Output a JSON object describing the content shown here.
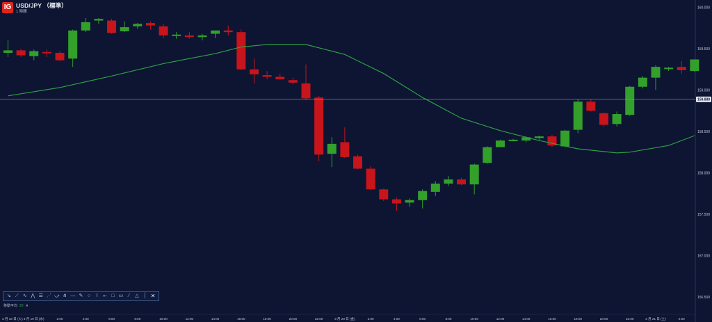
{
  "header": {
    "logo_text": "IG",
    "instrument": "USD/JPY （標準）",
    "timeframe": "1 時間"
  },
  "indicator": {
    "label": "移動平均",
    "value": "20",
    "close": "✕"
  },
  "toolbar": {
    "tools": [
      {
        "icon": "trend-arrow-icon",
        "glyph": "↘"
      },
      {
        "icon": "cross-line-icon",
        "glyph": "⟋"
      },
      {
        "icon": "wave-icon",
        "glyph": "∿"
      },
      {
        "icon": "wave-up-icon",
        "glyph": "⋀"
      },
      {
        "icon": "channel-icon",
        "glyph": "☰"
      },
      {
        "icon": "fib-fan-icon",
        "glyph": "⋰"
      },
      {
        "icon": "fib-arc-icon",
        "glyph": "⤻"
      },
      {
        "icon": "pitchfork-icon",
        "glyph": "⋔"
      },
      {
        "icon": "horizontal-line-icon",
        "glyph": "—"
      },
      {
        "icon": "pencil-icon",
        "glyph": "✎"
      },
      {
        "icon": "circle-icon",
        "glyph": "○"
      },
      {
        "icon": "brush-icon",
        "glyph": "⌇"
      },
      {
        "icon": "ray-icon",
        "glyph": "⟜"
      },
      {
        "icon": "rectangle-icon",
        "glyph": "□"
      },
      {
        "icon": "text-box-icon",
        "glyph": "▭"
      },
      {
        "icon": "line-icon",
        "glyph": "⁄"
      },
      {
        "icon": "triangle-icon",
        "glyph": "△"
      },
      {
        "icon": "vertical-line-icon",
        "glyph": "│"
      }
    ],
    "close_glyph": "✕"
  },
  "colors": {
    "background": "#0d1532",
    "bull": "#33a02c",
    "bear": "#c8141b",
    "ma": "#2f9e45",
    "crosshair": "#8d96a8",
    "axis_text": "#c2c9d9",
    "price_tag_bg": "#e6e8ee"
  },
  "chart_data": {
    "type": "candlestick",
    "instrument": "USD/JPY",
    "ylim": [
      156.45,
      160.1
    ],
    "y_ticks": [
      "160.000",
      "159.500",
      "159.000",
      "158.500",
      "158.000",
      "157.500",
      "157.000",
      "156.500"
    ],
    "current_price": "158.888",
    "x_ticks": [
      {
        "i": 0,
        "label": "3 月 18 日 (火) 3 月 19 日 (水)"
      },
      {
        "i": 4,
        "label": "2:00"
      },
      {
        "i": 6,
        "label": "4:00"
      },
      {
        "i": 8,
        "label": "6:00"
      },
      {
        "i": 10,
        "label": "8:00"
      },
      {
        "i": 12,
        "label": "10:00"
      },
      {
        "i": 14,
        "label": "12:00"
      },
      {
        "i": 16,
        "label": "14:00"
      },
      {
        "i": 18,
        "label": "16:00"
      },
      {
        "i": 20,
        "label": "18:00"
      },
      {
        "i": 22,
        "label": "20:00"
      },
      {
        "i": 24,
        "label": "22:00"
      },
      {
        "i": 26,
        "label": "3 月 20 日 (金)"
      },
      {
        "i": 28,
        "label": "2:00"
      },
      {
        "i": 30,
        "label": "4:00"
      },
      {
        "i": 32,
        "label": "6:00"
      },
      {
        "i": 34,
        "label": "8:00"
      },
      {
        "i": 36,
        "label": "10:00"
      },
      {
        "i": 38,
        "label": "12:00"
      },
      {
        "i": 40,
        "label": "14:00"
      },
      {
        "i": 42,
        "label": "16:00"
      },
      {
        "i": 44,
        "label": "18:00"
      },
      {
        "i": 46,
        "label": "20:00"
      },
      {
        "i": 48,
        "label": "22:00"
      },
      {
        "i": 50,
        "label": "3 月 21 日 (土)"
      },
      {
        "i": 52,
        "label": "2:00"
      }
    ],
    "candles": [
      {
        "o": 159.45,
        "h": 159.6,
        "l": 159.4,
        "c": 159.48
      },
      {
        "o": 159.48,
        "h": 159.5,
        "l": 159.4,
        "c": 159.42
      },
      {
        "o": 159.41,
        "h": 159.49,
        "l": 159.36,
        "c": 159.47
      },
      {
        "o": 159.46,
        "h": 159.49,
        "l": 159.4,
        "c": 159.45
      },
      {
        "o": 159.45,
        "h": 159.47,
        "l": 159.35,
        "c": 159.36
      },
      {
        "o": 159.38,
        "h": 159.73,
        "l": 159.28,
        "c": 159.72
      },
      {
        "o": 159.72,
        "h": 159.87,
        "l": 159.7,
        "c": 159.82
      },
      {
        "o": 159.84,
        "h": 159.87,
        "l": 159.8,
        "c": 159.86
      },
      {
        "o": 159.84,
        "h": 159.86,
        "l": 159.68,
        "c": 159.69
      },
      {
        "o": 159.71,
        "h": 159.83,
        "l": 159.7,
        "c": 159.76
      },
      {
        "o": 159.77,
        "h": 159.81,
        "l": 159.74,
        "c": 159.8
      },
      {
        "o": 159.81,
        "h": 159.83,
        "l": 159.73,
        "c": 159.78
      },
      {
        "o": 159.77,
        "h": 159.8,
        "l": 159.63,
        "c": 159.66
      },
      {
        "o": 159.67,
        "h": 159.7,
        "l": 159.62,
        "c": 159.67
      },
      {
        "o": 159.66,
        "h": 159.7,
        "l": 159.62,
        "c": 159.64
      },
      {
        "o": 159.64,
        "h": 159.68,
        "l": 159.6,
        "c": 159.66
      },
      {
        "o": 159.68,
        "h": 159.72,
        "l": 159.63,
        "c": 159.72
      },
      {
        "o": 159.72,
        "h": 159.78,
        "l": 159.66,
        "c": 159.7
      },
      {
        "o": 159.7,
        "h": 159.73,
        "l": 159.24,
        "c": 159.25
      },
      {
        "o": 159.25,
        "h": 159.38,
        "l": 159.08,
        "c": 159.19
      },
      {
        "o": 159.18,
        "h": 159.23,
        "l": 159.13,
        "c": 159.16
      },
      {
        "o": 159.16,
        "h": 159.2,
        "l": 159.13,
        "c": 159.13
      },
      {
        "o": 159.12,
        "h": 159.15,
        "l": 159.07,
        "c": 159.09
      },
      {
        "o": 159.08,
        "h": 159.31,
        "l": 158.88,
        "c": 158.9
      },
      {
        "o": 158.91,
        "h": 158.93,
        "l": 158.14,
        "c": 158.22
      },
      {
        "o": 158.23,
        "h": 158.43,
        "l": 158.07,
        "c": 158.35
      },
      {
        "o": 158.37,
        "h": 158.55,
        "l": 158.18,
        "c": 158.19
      },
      {
        "o": 158.2,
        "h": 158.22,
        "l": 158.04,
        "c": 158.05
      },
      {
        "o": 158.05,
        "h": 158.08,
        "l": 157.79,
        "c": 157.8
      },
      {
        "o": 157.8,
        "h": 157.81,
        "l": 157.66,
        "c": 157.68
      },
      {
        "o": 157.68,
        "h": 157.7,
        "l": 157.54,
        "c": 157.63
      },
      {
        "o": 157.64,
        "h": 157.69,
        "l": 157.59,
        "c": 157.67
      },
      {
        "o": 157.67,
        "h": 157.8,
        "l": 157.57,
        "c": 157.78
      },
      {
        "o": 157.77,
        "h": 157.9,
        "l": 157.72,
        "c": 157.87
      },
      {
        "o": 157.87,
        "h": 157.96,
        "l": 157.84,
        "c": 157.92
      },
      {
        "o": 157.92,
        "h": 157.94,
        "l": 157.85,
        "c": 157.86
      },
      {
        "o": 157.86,
        "h": 158.11,
        "l": 157.74,
        "c": 158.1
      },
      {
        "o": 158.12,
        "h": 158.32,
        "l": 158.11,
        "c": 158.31
      },
      {
        "o": 158.31,
        "h": 158.4,
        "l": 158.31,
        "c": 158.39
      },
      {
        "o": 158.4,
        "h": 158.41,
        "l": 158.38,
        "c": 158.4
      },
      {
        "o": 158.39,
        "h": 158.44,
        "l": 158.37,
        "c": 158.43
      },
      {
        "o": 158.42,
        "h": 158.45,
        "l": 158.4,
        "c": 158.44
      },
      {
        "o": 158.44,
        "h": 158.46,
        "l": 158.31,
        "c": 158.33
      },
      {
        "o": 158.32,
        "h": 158.52,
        "l": 158.31,
        "c": 158.51
      },
      {
        "o": 158.52,
        "h": 158.89,
        "l": 158.48,
        "c": 158.86
      },
      {
        "o": 158.86,
        "h": 158.89,
        "l": 158.74,
        "c": 158.75
      },
      {
        "o": 158.72,
        "h": 158.73,
        "l": 158.56,
        "c": 158.58
      },
      {
        "o": 158.59,
        "h": 158.74,
        "l": 158.56,
        "c": 158.71
      },
      {
        "o": 158.7,
        "h": 159.05,
        "l": 158.69,
        "c": 159.04
      },
      {
        "o": 159.04,
        "h": 159.17,
        "l": 159.02,
        "c": 159.15
      },
      {
        "o": 159.15,
        "h": 159.3,
        "l": 159.0,
        "c": 159.28
      },
      {
        "o": 159.27,
        "h": 159.28,
        "l": 159.23,
        "c": 159.27
      },
      {
        "o": 159.28,
        "h": 159.35,
        "l": 159.2,
        "c": 159.24
      },
      {
        "o": 159.23,
        "h": 159.37,
        "l": 159.22,
        "c": 159.37
      }
    ],
    "moving_average": {
      "name": "移動平均",
      "period": 20,
      "points": [
        {
          "i": 0,
          "v": 158.93
        },
        {
          "i": 4,
          "v": 159.03
        },
        {
          "i": 8,
          "v": 159.17
        },
        {
          "i": 12,
          "v": 159.32
        },
        {
          "i": 16,
          "v": 159.44
        },
        {
          "i": 18,
          "v": 159.52
        },
        {
          "i": 20,
          "v": 159.55
        },
        {
          "i": 23,
          "v": 159.55
        },
        {
          "i": 26,
          "v": 159.43
        },
        {
          "i": 29,
          "v": 159.2
        },
        {
          "i": 32,
          "v": 158.91
        },
        {
          "i": 35,
          "v": 158.66
        },
        {
          "i": 38,
          "v": 158.51
        },
        {
          "i": 41,
          "v": 158.39
        },
        {
          "i": 44,
          "v": 158.29
        },
        {
          "i": 47,
          "v": 158.24
        },
        {
          "i": 48,
          "v": 158.25
        },
        {
          "i": 51,
          "v": 158.33
        },
        {
          "i": 53,
          "v": 158.45
        }
      ]
    },
    "grid": false
  }
}
